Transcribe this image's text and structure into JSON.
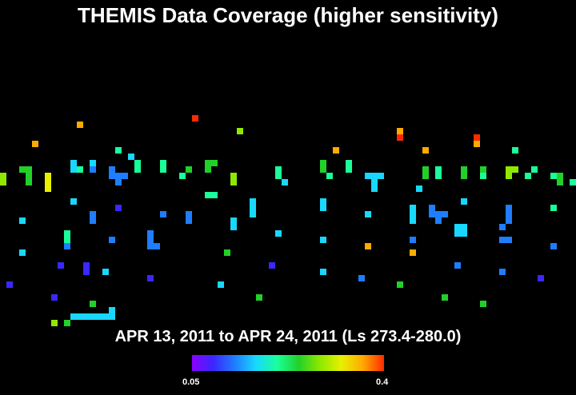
{
  "chart_data": {
    "type": "heatmap",
    "title": "THEMIS Data Coverage (higher sensitivity)",
    "subtitle": "APR 13, 2011 to APR 24, 2011 (Ls 273.4-280.0)",
    "colorbar": {
      "min_label": "0.05",
      "max_label": "0.4",
      "min": 0.05,
      "max": 0.4,
      "colors": [
        "#8a00ff",
        "#3a28ff",
        "#1f7dff",
        "#18d8ff",
        "#1aff9a",
        "#22d02a",
        "#8fe800",
        "#e8f000",
        "#ffaa00",
        "#ff2a00"
      ]
    },
    "cells": [
      [
        30,
        18,
        0.4
      ],
      [
        12,
        19,
        0.37
      ],
      [
        37,
        20,
        0.28
      ],
      [
        62,
        20,
        0.38
      ],
      [
        5,
        22,
        0.36
      ],
      [
        18,
        23,
        0.21
      ],
      [
        52,
        23,
        0.37
      ],
      [
        66,
        23,
        0.38
      ],
      [
        80,
        23,
        0.22
      ],
      [
        62,
        21,
        0.41
      ],
      [
        74,
        21,
        0.4
      ],
      [
        74,
        22,
        0.38
      ],
      [
        20,
        24,
        0.16
      ],
      [
        0,
        27,
        0.28
      ],
      [
        0,
        28,
        0.28
      ],
      [
        3,
        26,
        0.25
      ],
      [
        4,
        26,
        0.25
      ],
      [
        4,
        27,
        0.25
      ],
      [
        4,
        28,
        0.25
      ],
      [
        7,
        27,
        0.31
      ],
      [
        7,
        28,
        0.31
      ],
      [
        7,
        29,
        0.31
      ],
      [
        11,
        25,
        0.17
      ],
      [
        11,
        26,
        0.17
      ],
      [
        12,
        26,
        0.22
      ],
      [
        14,
        25,
        0.17
      ],
      [
        14,
        26,
        0.12
      ],
      [
        17,
        26,
        0.11
      ],
      [
        17,
        27,
        0.11
      ],
      [
        18,
        27,
        0.11
      ],
      [
        19,
        27,
        0.11
      ],
      [
        18,
        28,
        0.11
      ],
      [
        21,
        25,
        0.22
      ],
      [
        21,
        26,
        0.22
      ],
      [
        25,
        25,
        0.22
      ],
      [
        25,
        26,
        0.22
      ],
      [
        28,
        27,
        0.22
      ],
      [
        29,
        26,
        0.24
      ],
      [
        32,
        25,
        0.24
      ],
      [
        33,
        25,
        0.24
      ],
      [
        32,
        26,
        0.24
      ],
      [
        36,
        27,
        0.28
      ],
      [
        36,
        28,
        0.28
      ],
      [
        43,
        26,
        0.22
      ],
      [
        43,
        27,
        0.22
      ],
      [
        44,
        28,
        0.17
      ],
      [
        50,
        25,
        0.25
      ],
      [
        50,
        26,
        0.25
      ],
      [
        51,
        27,
        0.22
      ],
      [
        54,
        25,
        0.22
      ],
      [
        54,
        26,
        0.22
      ],
      [
        57,
        27,
        0.17
      ],
      [
        58,
        27,
        0.17
      ],
      [
        59,
        27,
        0.17
      ],
      [
        58,
        28,
        0.17
      ],
      [
        58,
        29,
        0.17
      ],
      [
        66,
        26,
        0.24
      ],
      [
        66,
        27,
        0.24
      ],
      [
        68,
        26,
        0.22
      ],
      [
        68,
        27,
        0.22
      ],
      [
        72,
        26,
        0.24
      ],
      [
        72,
        27,
        0.24
      ],
      [
        75,
        26,
        0.24
      ],
      [
        75,
        27,
        0.22
      ],
      [
        79,
        26,
        0.27
      ],
      [
        79,
        27,
        0.3
      ],
      [
        80,
        26,
        0.27
      ],
      [
        82,
        27,
        0.22
      ],
      [
        83,
        26,
        0.22
      ],
      [
        86,
        27,
        0.22
      ],
      [
        87,
        27,
        0.24
      ],
      [
        87,
        28,
        0.24
      ],
      [
        89,
        28,
        0.22
      ],
      [
        65,
        29,
        0.15
      ],
      [
        32,
        30,
        0.22
      ],
      [
        33,
        30,
        0.22
      ],
      [
        11,
        31,
        0.15
      ],
      [
        18,
        32,
        0.1
      ],
      [
        39,
        31,
        0.17
      ],
      [
        50,
        31,
        0.15
      ],
      [
        72,
        31,
        0.15
      ],
      [
        86,
        32,
        0.22
      ],
      [
        3,
        34,
        0.15
      ],
      [
        14,
        33,
        0.11
      ],
      [
        14,
        34,
        0.11
      ],
      [
        25,
        33,
        0.11
      ],
      [
        29,
        33,
        0.11
      ],
      [
        29,
        34,
        0.11
      ],
      [
        36,
        34,
        0.15
      ],
      [
        36,
        35,
        0.15
      ],
      [
        39,
        32,
        0.15
      ],
      [
        39,
        33,
        0.15
      ],
      [
        50,
        32,
        0.15
      ],
      [
        57,
        33,
        0.15
      ],
      [
        64,
        32,
        0.15
      ],
      [
        64,
        33,
        0.15
      ],
      [
        64,
        34,
        0.15
      ],
      [
        67,
        32,
        0.11
      ],
      [
        67,
        33,
        0.11
      ],
      [
        68,
        33,
        0.11
      ],
      [
        68,
        34,
        0.11
      ],
      [
        69,
        33,
        0.11
      ],
      [
        71,
        35,
        0.15
      ],
      [
        72,
        35,
        0.15
      ],
      [
        72,
        36,
        0.15
      ],
      [
        79,
        32,
        0.11
      ],
      [
        79,
        33,
        0.11
      ],
      [
        79,
        34,
        0.11
      ],
      [
        78,
        35,
        0.11
      ],
      [
        10,
        36,
        0.22
      ],
      [
        10,
        37,
        0.22
      ],
      [
        10,
        38,
        0.11
      ],
      [
        17,
        37,
        0.11
      ],
      [
        23,
        36,
        0.11
      ],
      [
        23,
        37,
        0.11
      ],
      [
        23,
        38,
        0.11
      ],
      [
        24,
        38,
        0.11
      ],
      [
        43,
        36,
        0.15
      ],
      [
        50,
        37,
        0.15
      ],
      [
        57,
        38,
        0.35
      ],
      [
        64,
        37,
        0.11
      ],
      [
        71,
        36,
        0.15
      ],
      [
        78,
        37,
        0.11
      ],
      [
        79,
        37,
        0.11
      ],
      [
        86,
        38,
        0.11
      ],
      [
        3,
        39,
        0.15
      ],
      [
        35,
        39,
        0.24
      ],
      [
        64,
        39,
        0.37
      ],
      [
        42,
        41,
        0.1
      ],
      [
        71,
        41,
        0.11
      ],
      [
        9,
        41,
        0.1
      ],
      [
        13,
        41,
        0.08
      ],
      [
        13,
        42,
        0.08
      ],
      [
        16,
        42,
        0.15
      ],
      [
        78,
        42,
        0.11
      ],
      [
        50,
        42,
        0.15
      ],
      [
        1,
        44,
        0.08
      ],
      [
        23,
        43,
        0.08
      ],
      [
        56,
        43,
        0.11
      ],
      [
        62,
        44,
        0.24
      ],
      [
        84,
        43,
        0.08
      ],
      [
        34,
        44,
        0.15
      ],
      [
        8,
        46,
        0.1
      ],
      [
        40,
        46,
        0.24
      ],
      [
        69,
        46,
        0.24
      ],
      [
        14,
        47,
        0.24
      ],
      [
        75,
        47,
        0.24
      ],
      [
        17,
        48,
        0.15
      ],
      [
        11,
        49,
        0.18
      ],
      [
        12,
        49,
        0.18
      ],
      [
        13,
        49,
        0.18
      ],
      [
        14,
        49,
        0.18
      ],
      [
        15,
        49,
        0.18
      ],
      [
        16,
        49,
        0.18
      ],
      [
        17,
        49,
        0.18
      ],
      [
        17,
        48,
        0.15
      ],
      [
        8,
        50,
        0.3
      ],
      [
        10,
        50,
        0.24
      ]
    ]
  }
}
